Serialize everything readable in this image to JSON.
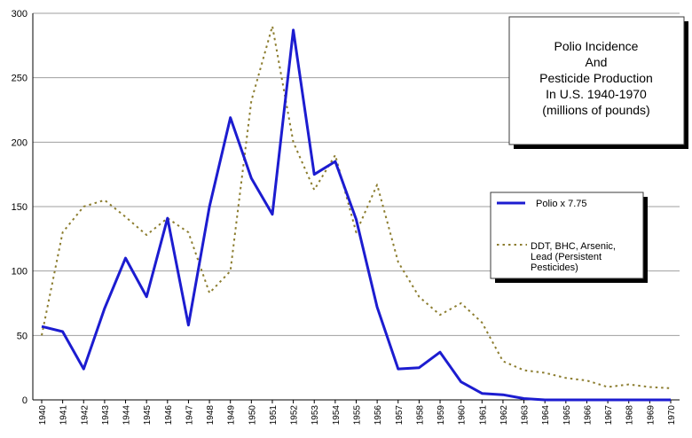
{
  "chart_data": {
    "type": "line",
    "title": [
      "Polio Incidence",
      "And",
      "Pesticide Production",
      "In U.S. 1940-1970",
      "(millions of pounds)"
    ],
    "xlabel": "",
    "ylabel": "",
    "ylim": [
      0,
      300
    ],
    "yticks": [
      0,
      50,
      100,
      150,
      200,
      250,
      300
    ],
    "xlim": [
      1940,
      1970
    ],
    "categories": [
      1940,
      1941,
      1942,
      1943,
      1944,
      1945,
      1946,
      1947,
      1948,
      1949,
      1950,
      1951,
      1952,
      1953,
      1954,
      1955,
      1956,
      1957,
      1958,
      1959,
      1960,
      1961,
      1962,
      1963,
      1964,
      1965,
      1966,
      1967,
      1968,
      1969,
      1970
    ],
    "grid": true,
    "legend_position": "right",
    "series": [
      {
        "name": "Polio x 7.75",
        "style": "solid",
        "color": "#1c1cd0",
        "values": [
          57,
          53,
          24,
          71,
          110,
          80,
          141,
          58,
          150,
          219,
          172,
          144,
          287,
          175,
          185,
          140,
          72,
          24,
          25,
          37,
          14,
          5,
          4,
          1,
          0,
          0,
          0,
          0,
          0,
          0,
          0
        ]
      },
      {
        "name": "DDT, BHC, Arsenic, Lead (Persistent Pesticides)",
        "style": "dotted",
        "color": "#8c7d2f",
        "values": [
          50,
          130,
          150,
          155,
          142,
          128,
          141,
          130,
          83,
          100,
          232,
          290,
          200,
          163,
          190,
          130,
          167,
          107,
          80,
          66,
          75,
          60,
          30,
          23,
          21,
          17,
          15,
          10,
          12,
          10,
          9
        ]
      }
    ]
  },
  "legend": {
    "polio_label": "Polio x 7.75",
    "pesticide_label_lines": [
      "DDT, BHC, Arsenic,",
      "Lead (Persistent",
      "Pesticides)"
    ]
  },
  "colors": {
    "grid": "#9f9f9f",
    "axis": "#000000",
    "polio_line": "#1c1cd0",
    "pesticide_line": "#8c7d2f",
    "box_border": "#3a3a3a",
    "box_shadow": "#000000"
  }
}
